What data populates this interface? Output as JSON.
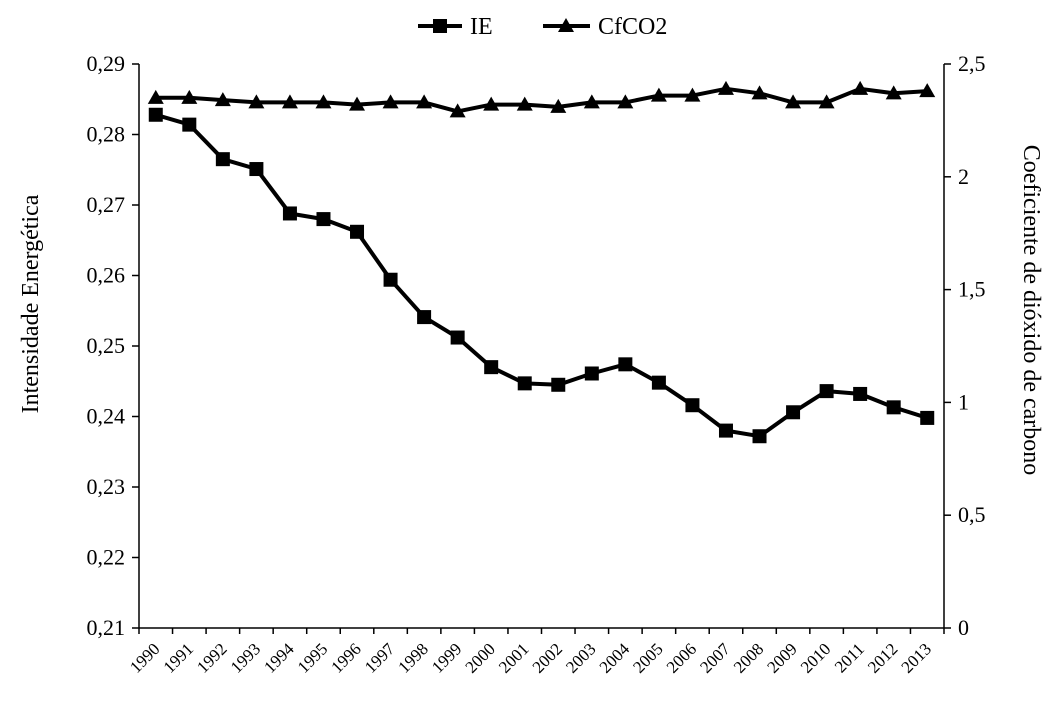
{
  "chart_data": {
    "type": "line",
    "title": "",
    "x": [
      "1990",
      "1991",
      "1992",
      "1993",
      "1994",
      "1995",
      "1996",
      "1997",
      "1998",
      "1999",
      "2000",
      "2001",
      "2002",
      "2003",
      "2004",
      "2005",
      "2006",
      "2007",
      "2008",
      "2009",
      "2010",
      "2011",
      "2012",
      "2013"
    ],
    "series": [
      {
        "name": "IE",
        "axis": "left",
        "marker": "square",
        "values": [
          0.2828,
          0.2814,
          0.2765,
          0.2751,
          0.2688,
          0.268,
          0.2662,
          0.2594,
          0.2541,
          0.2512,
          0.247,
          0.2447,
          0.2445,
          0.2461,
          0.2474,
          0.2448,
          0.2416,
          0.238,
          0.2372,
          0.2406,
          0.2436,
          0.2432,
          0.2413,
          0.2398
        ]
      },
      {
        "name": "CfCO2",
        "axis": "right",
        "marker": "triangle",
        "values": [
          2.35,
          2.35,
          2.34,
          2.33,
          2.33,
          2.33,
          2.32,
          2.33,
          2.33,
          2.29,
          2.32,
          2.32,
          2.31,
          2.33,
          2.33,
          2.36,
          2.36,
          2.39,
          2.37,
          2.33,
          2.33,
          2.39,
          2.37,
          2.38
        ]
      }
    ],
    "ylabel_left": "Intensidade Energética",
    "ylabel_right": "Coeficiente de dióxido de carbono",
    "xlabel": "",
    "ylim_left": [
      0.21,
      0.29
    ],
    "ylim_right": [
      0,
      2.5
    ],
    "yticks_left": [
      "0,29",
      "0,28",
      "0,27",
      "0,26",
      "0,25",
      "0,24",
      "0,23",
      "0,22",
      "0,21"
    ],
    "yticks_right": [
      "2,5",
      "2",
      "1,5",
      "1",
      "0,5",
      "0"
    ],
    "legend_position": "top-center",
    "grid": false,
    "line_color": "#000000"
  }
}
